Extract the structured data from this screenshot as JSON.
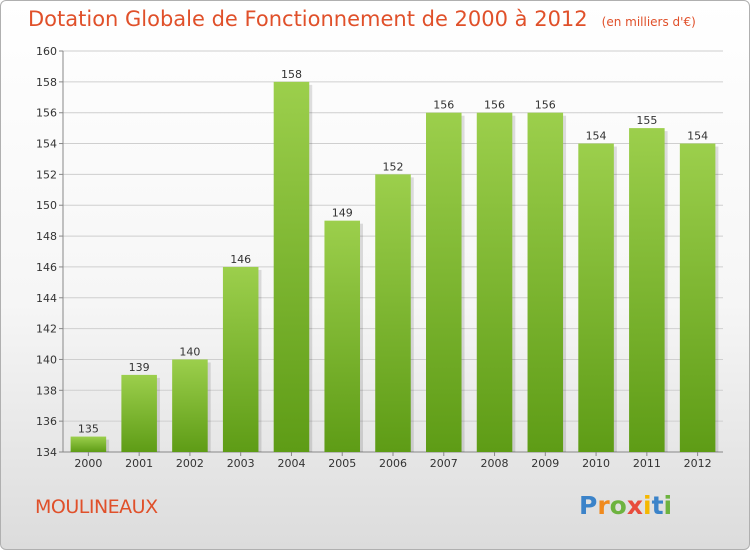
{
  "header": {
    "title": "Dotation Globale de Fonctionnement de 2000 à 2012",
    "unit": "(en milliers d'€)"
  },
  "commune": "MOULINEAUX",
  "logo": {
    "text": "Proxiti",
    "letters": [
      {
        "ch": "P",
        "color": "#3b83c9"
      },
      {
        "ch": "r",
        "color": "#f08a1e"
      },
      {
        "ch": "o",
        "color": "#6db33f"
      },
      {
        "ch": "x",
        "color": "#e84c3d"
      },
      {
        "ch": "i",
        "color": "#f5b800"
      },
      {
        "ch": "t",
        "color": "#3b83c9"
      },
      {
        "ch": "i",
        "color": "#6db33f"
      }
    ]
  },
  "chart_data": {
    "type": "bar",
    "categories": [
      "2000",
      "2001",
      "2002",
      "2003",
      "2004",
      "2005",
      "2006",
      "2007",
      "2008",
      "2009",
      "2010",
      "2011",
      "2012"
    ],
    "values": [
      135,
      139,
      140,
      146,
      158,
      149,
      152,
      156,
      156,
      156,
      154,
      155,
      154
    ],
    "ylim": [
      134,
      160
    ],
    "yticks": [
      134,
      136,
      138,
      140,
      142,
      144,
      146,
      148,
      150,
      152,
      154,
      156,
      158,
      160
    ],
    "grid": true,
    "bar_color_top": "#9ccf4c",
    "bar_color_bottom": "#5e9c16"
  }
}
